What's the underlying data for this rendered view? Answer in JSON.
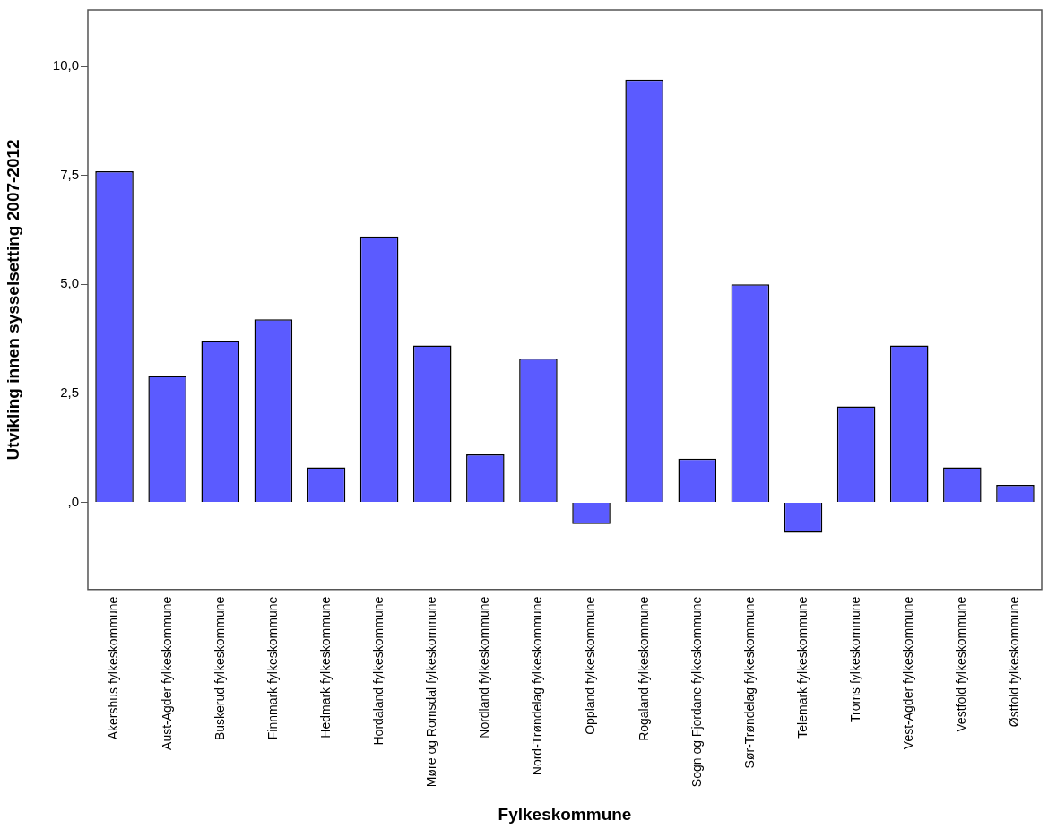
{
  "chart_data": {
    "type": "bar",
    "xlabel": "Fylkeskommune",
    "ylabel": "Utvikling innen sysselsetting 2007-2012",
    "categories": [
      "Akershus fylkeskommune",
      "Aust-Agder fylkeskommune",
      "Buskerud fylkeskommune",
      "Finnmark fylkeskommune",
      "Hedmark fylkeskommune",
      "Hordaland fylkeskommune",
      "Møre og Romsdal fylkeskommune",
      "Nordland fylkeskommune",
      "Nord-Trøndelag fylkeskommune",
      "Oppland fylkeskommune",
      "Rogaland fylkeskommune",
      "Sogn og Fjordane fylkeskommune",
      "Sør-Trøndelag fylkeskommune",
      "Telemark fylkeskommune",
      "Troms fylkeskommune",
      "Vest-Agder fylkeskommune",
      "Vestfold fylkeskommune",
      "Østfold fylkeskommune"
    ],
    "values": [
      7.6,
      2.9,
      3.7,
      4.2,
      0.8,
      6.1,
      3.6,
      1.1,
      3.3,
      -0.5,
      9.7,
      1.0,
      5.0,
      -0.7,
      2.2,
      3.6,
      0.8,
      0.4
    ],
    "color": "#5b5bff",
    "ylim": [
      -2,
      11.3
    ],
    "yticks": [
      {
        "value": 0,
        "label": ",0"
      },
      {
        "value": 2.5,
        "label": "2,5"
      },
      {
        "value": 5,
        "label": "5,0"
      },
      {
        "value": 7.5,
        "label": "7,5"
      },
      {
        "value": 10,
        "label": "10,0"
      }
    ],
    "grid": false,
    "legend": false
  }
}
